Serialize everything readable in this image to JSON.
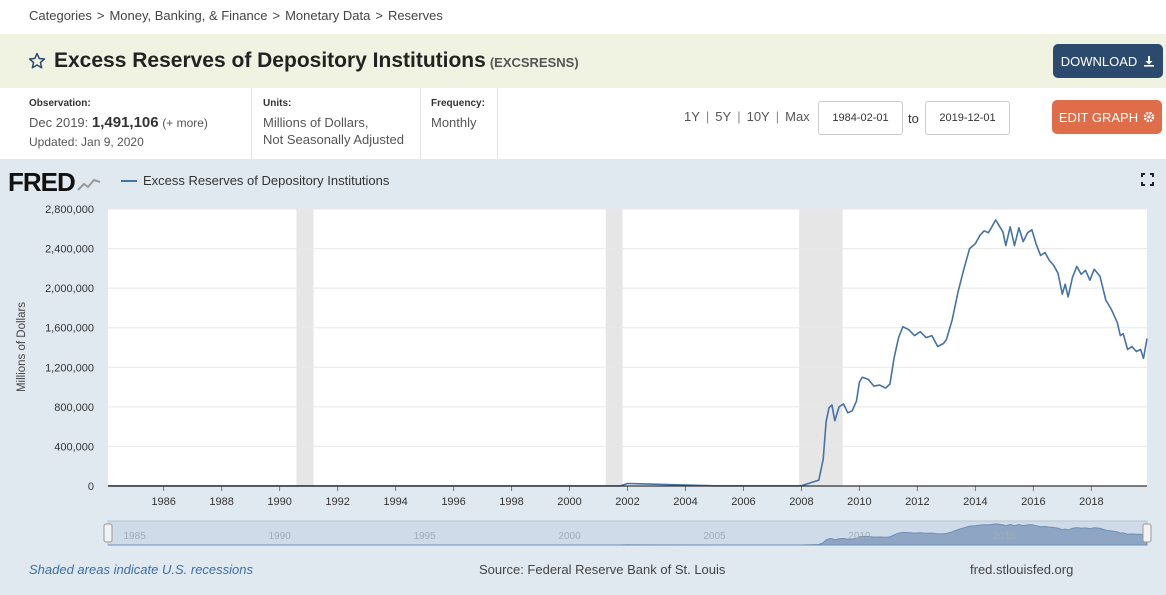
{
  "breadcrumb": [
    "Categories",
    "Money, Banking, & Finance",
    "Monetary Data",
    "Reserves"
  ],
  "header": {
    "title": "Excess Reserves of Depository Institutions",
    "series_id": "(EXCSRESNS)",
    "download_label": "DOWNLOAD"
  },
  "meta": {
    "observation_label": "Observation:",
    "observation_date": "Dec 2019:",
    "observation_value": "1,491,106",
    "observation_more": "(+ more)",
    "updated": "Updated: Jan 9, 2020",
    "units_label": "Units:",
    "units_line1": "Millions of Dollars,",
    "units_line2": "Not Seasonally Adjusted",
    "frequency_label": "Frequency:",
    "frequency_value": "Monthly"
  },
  "controls": {
    "ranges": [
      "1Y",
      "5Y",
      "10Y",
      "Max"
    ],
    "start_date": "1984-02-01",
    "to_label": "to",
    "end_date": "2019-12-01",
    "edit_label": "EDIT GRAPH"
  },
  "logo": "FRED",
  "footer": {
    "note": "Shaded areas indicate U.S. recessions",
    "source": "Source: Federal Reserve Bank of St. Louis",
    "url": "fred.stlouisfed.org"
  },
  "chart_data": {
    "type": "line",
    "title": "Excess Reserves of Depository Institutions",
    "ylabel": "Millions of Dollars",
    "xlabel": "",
    "xlim": [
      1984.08,
      2019.92
    ],
    "ylim": [
      0,
      2800000
    ],
    "yticks": [
      0,
      400000,
      800000,
      1200000,
      1600000,
      2000000,
      2400000,
      2800000
    ],
    "ytick_labels": [
      "0",
      "400,000",
      "800,000",
      "1,200,000",
      "1,600,000",
      "2,000,000",
      "2,400,000",
      "2,800,000"
    ],
    "xticks": [
      1986,
      1988,
      1990,
      1992,
      1994,
      1996,
      1998,
      2000,
      2002,
      2004,
      2006,
      2008,
      2010,
      2012,
      2014,
      2016,
      2018
    ],
    "recessions": [
      [
        1990.58,
        1991.17
      ],
      [
        2001.25,
        2001.83
      ],
      [
        2007.92,
        2009.42
      ]
    ],
    "navigator_labels": [
      "1985",
      "1990",
      "1995",
      "2000",
      "2005",
      "2010",
      "2015"
    ],
    "series": [
      {
        "name": "Excess Reserves of Depository Institutions",
        "color": "#4572a7",
        "x": [
          1984.08,
          1990.0,
          1995.0,
          2000.0,
          2001.75,
          2002.0,
          2005.0,
          2008.0,
          2008.6,
          2008.75,
          2008.85,
          2008.95,
          2009.05,
          2009.15,
          2009.3,
          2009.45,
          2009.6,
          2009.75,
          2009.9,
          2010.0,
          2010.1,
          2010.3,
          2010.5,
          2010.7,
          2010.9,
          2011.05,
          2011.2,
          2011.35,
          2011.5,
          2011.7,
          2011.9,
          2012.1,
          2012.3,
          2012.5,
          2012.7,
          2012.9,
          2013.0,
          2013.2,
          2013.4,
          2013.6,
          2013.8,
          2014.0,
          2014.15,
          2014.3,
          2014.45,
          2014.55,
          2014.7,
          2014.8,
          2014.95,
          2015.05,
          2015.2,
          2015.35,
          2015.5,
          2015.65,
          2015.8,
          2015.95,
          2016.1,
          2016.25,
          2016.4,
          2016.55,
          2016.7,
          2016.85,
          2017.0,
          2017.1,
          2017.2,
          2017.35,
          2017.5,
          2017.65,
          2017.8,
          2017.95,
          2018.1,
          2018.3,
          2018.5,
          2018.7,
          2018.9,
          2019.0,
          2019.1,
          2019.25,
          2019.4,
          2019.55,
          2019.7,
          2019.8,
          2019.92
        ],
        "values": [
          1000,
          1000,
          1000,
          1000,
          1000,
          25000,
          2000,
          2000,
          60000,
          270000,
          650000,
          790000,
          820000,
          660000,
          800000,
          830000,
          740000,
          760000,
          860000,
          1050000,
          1100000,
          1080000,
          1010000,
          1020000,
          990000,
          1030000,
          1300000,
          1500000,
          1610000,
          1580000,
          1520000,
          1560000,
          1500000,
          1520000,
          1410000,
          1440000,
          1480000,
          1680000,
          1960000,
          2190000,
          2400000,
          2450000,
          2530000,
          2580000,
          2560000,
          2610000,
          2690000,
          2640000,
          2570000,
          2430000,
          2620000,
          2430000,
          2610000,
          2470000,
          2560000,
          2590000,
          2440000,
          2330000,
          2360000,
          2280000,
          2230000,
          2150000,
          1940000,
          2040000,
          1910000,
          2110000,
          2220000,
          2140000,
          2180000,
          2080000,
          2190000,
          2120000,
          1880000,
          1780000,
          1650000,
          1520000,
          1540000,
          1380000,
          1410000,
          1360000,
          1380000,
          1290000,
          1491106
        ]
      }
    ]
  }
}
